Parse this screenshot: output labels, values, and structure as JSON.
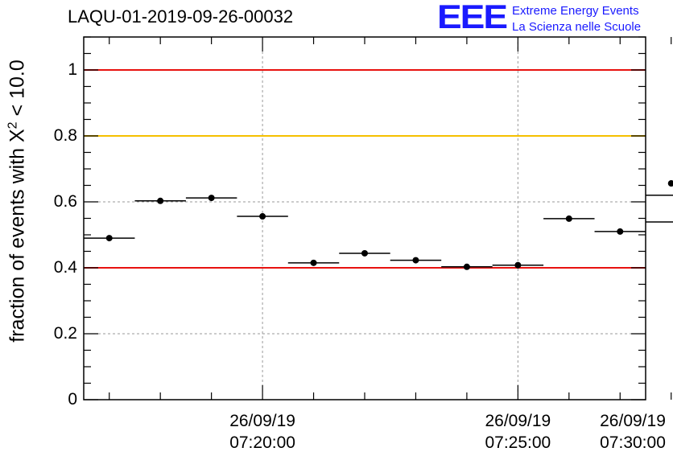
{
  "title": "LAQU-01-2019-09-26-00032",
  "logo": {
    "text": "EEE",
    "line1": "Extreme Energy Events",
    "line2": "La Scienza nelle Scuole",
    "color": "#1a1aff"
  },
  "chart_data": {
    "type": "scatter",
    "title": "LAQU-01-2019-09-26-00032",
    "ylabel_prefix": "fraction of events with X",
    "ylabel_sup": "2",
    "ylabel_suffix": " < 10.0",
    "xlabel": "",
    "xlim_minutes": [
      -3.5,
      7.5
    ],
    "ylim": [
      0,
      1.1
    ],
    "yticks": [
      {
        "value": 0,
        "label": "0"
      },
      {
        "value": 0.2,
        "label": "0.2"
      },
      {
        "value": 0.4,
        "label": "0.4"
      },
      {
        "value": 0.6,
        "label": "0.6"
      },
      {
        "value": 0.8,
        "label": "0.8"
      },
      {
        "value": 1,
        "label": "1"
      }
    ],
    "xticks": [
      {
        "minute": 0,
        "date": "26/09/19",
        "time": "07:20:00"
      },
      {
        "minute": 5,
        "date": "26/09/19",
        "time": "07:25:00"
      },
      {
        "minute": 10,
        "date": "26/09/19",
        "time": "07:30:00"
      }
    ],
    "minor_xticks": [
      -3,
      -2,
      -1,
      1,
      2,
      3,
      4,
      6,
      7,
      8,
      9,
      11
    ],
    "grid": true,
    "bin_width_minutes": 1,
    "points": [
      {
        "x": -3.0,
        "y": 0.49
      },
      {
        "x": -2.0,
        "y": 0.603
      },
      {
        "x": -1.0,
        "y": 0.612
      },
      {
        "x": 0.0,
        "y": 0.556
      },
      {
        "x": 1.0,
        "y": 0.415
      },
      {
        "x": 2.0,
        "y": 0.444
      },
      {
        "x": 3.0,
        "y": 0.423
      },
      {
        "x": 4.0,
        "y": 0.403
      },
      {
        "x": 5.0,
        "y": 0.408
      },
      {
        "x": 6.0,
        "y": 0.549
      },
      {
        "x": 7.0,
        "y": 0.51
      },
      {
        "x": 8.0,
        "y": 0.656
      },
      {
        "x": 9.0,
        "y": 0.539
      },
      {
        "x": 10.0,
        "y": 0.62
      }
    ],
    "reference_lines": [
      {
        "y": 1.0,
        "color": "#e8120f"
      },
      {
        "y": 0.8,
        "color": "#f5c000"
      },
      {
        "y": 0.4,
        "color": "#e8120f"
      }
    ]
  }
}
